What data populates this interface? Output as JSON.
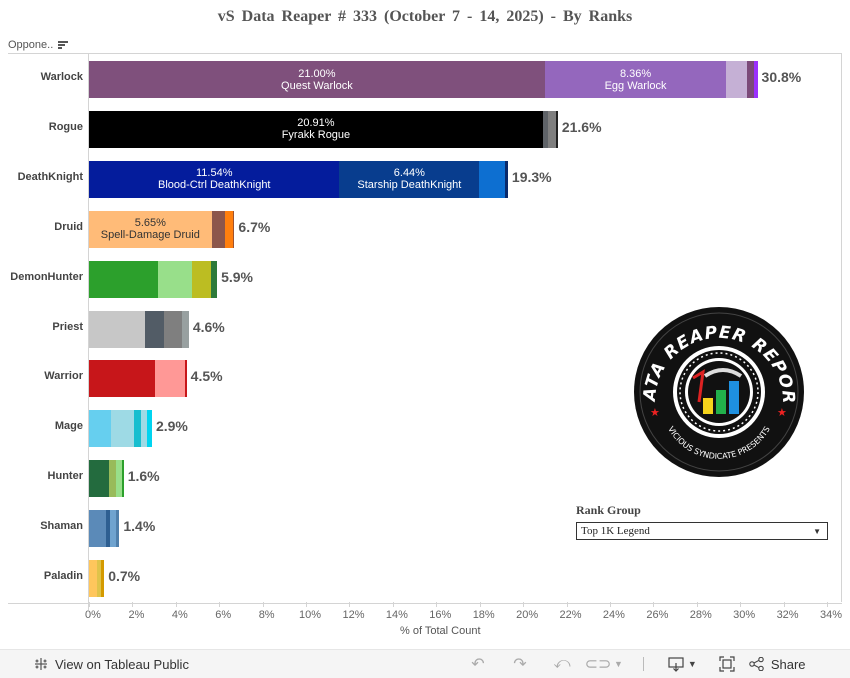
{
  "title": "vS Data Reaper #  333 (October 7 - 14, 2025) - By Ranks",
  "header": {
    "column_label": "Oppone..",
    "sort_icon": "sort-descending-icon"
  },
  "chart_data": {
    "type": "bar",
    "orientation": "horizontal",
    "stacked": true,
    "title": "vS Data Reaper #  333 (October 7 - 14, 2025) - By Ranks",
    "xlabel": "% of Total Count",
    "ylabel": "Oppone..",
    "xlim": [
      0,
      34
    ],
    "x_ticks": [
      "0%",
      "2%",
      "4%",
      "6%",
      "8%",
      "10%",
      "12%",
      "14%",
      "16%",
      "18%",
      "20%",
      "22%",
      "24%",
      "26%",
      "28%",
      "30%",
      "32%",
      "34%"
    ],
    "grid": false,
    "categories": [
      "Warlock",
      "Rogue",
      "DeathKnight",
      "Druid",
      "DemonHunter",
      "Priest",
      "Warrior",
      "Mage",
      "Hunter",
      "Shaman",
      "Paladin"
    ],
    "totals": [
      30.8,
      21.6,
      19.3,
      6.7,
      5.9,
      4.6,
      4.5,
      2.9,
      1.6,
      1.4,
      0.7
    ],
    "total_labels": [
      "30.8%",
      "21.6%",
      "19.3%",
      "6.7%",
      "5.9%",
      "4.6%",
      "4.5%",
      "2.9%",
      "1.6%",
      "1.4%",
      "0.7%"
    ],
    "rows": [
      {
        "class": "Warlock",
        "total_label": "30.8%",
        "segments": [
          {
            "value": 21.0,
            "pct": "21.00%",
            "name": "Quest Warlock",
            "color": "#7f507c"
          },
          {
            "value": 8.36,
            "pct": "8.36%",
            "name": "Egg Warlock",
            "color": "#9467bd"
          },
          {
            "value": 0.95,
            "color": "#c5b0d5"
          },
          {
            "value": 0.35,
            "color": "#7b4a79"
          },
          {
            "value": 0.14,
            "color": "#9b30ff"
          }
        ]
      },
      {
        "class": "Rogue",
        "total_label": "21.6%",
        "segments": [
          {
            "value": 20.91,
            "pct": "20.91%",
            "name": "Fyrakk Rogue",
            "color": "#000000"
          },
          {
            "value": 0.25,
            "color": "#5f6368"
          },
          {
            "value": 0.37,
            "color": "#7f7f7f"
          },
          {
            "value": 0.07,
            "color": "#222222"
          }
        ]
      },
      {
        "class": "DeathKnight",
        "total_label": "19.3%",
        "segments": [
          {
            "value": 11.54,
            "pct": "11.54%",
            "name": "Blood-Ctrl DeathKnight",
            "color": "#041c9c"
          },
          {
            "value": 6.44,
            "pct": "6.44%",
            "name": "Starship DeathKnight",
            "color": "#083d8e"
          },
          {
            "value": 1.18,
            "color": "#0d6fd1"
          },
          {
            "value": 0.14,
            "color": "#0a2a6b"
          }
        ]
      },
      {
        "class": "Druid",
        "total_label": "6.7%",
        "segments": [
          {
            "value": 5.65,
            "pct": "5.65%",
            "name": "Spell-Damage Druid",
            "color": "#ffbb78",
            "dark_text": true
          },
          {
            "value": 0.6,
            "color": "#8c564b"
          },
          {
            "value": 0.37,
            "color": "#ff7f0e"
          },
          {
            "value": 0.08,
            "color": "#a0522d"
          }
        ]
      },
      {
        "class": "DemonHunter",
        "total_label": "5.9%",
        "segments": [
          {
            "value": 3.18,
            "color": "#2ca02c"
          },
          {
            "value": 1.57,
            "color": "#98df8a"
          },
          {
            "value": 0.87,
            "color": "#bcbd22"
          },
          {
            "value": 0.28,
            "color": "#2d7a3a"
          }
        ]
      },
      {
        "class": "Priest",
        "total_label": "4.6%",
        "segments": [
          {
            "value": 2.59,
            "color": "#c7c7c7"
          },
          {
            "value": 0.87,
            "color": "#525c66"
          },
          {
            "value": 0.83,
            "color": "#7f7f7f"
          },
          {
            "value": 0.31,
            "color": "#98a0a0"
          }
        ]
      },
      {
        "class": "Warrior",
        "total_label": "4.5%",
        "segments": [
          {
            "value": 3.05,
            "color": "#c7161a"
          },
          {
            "value": 1.38,
            "color": "#ff9896"
          },
          {
            "value": 0.07,
            "color": "#c7161a"
          }
        ]
      },
      {
        "class": "Mage",
        "total_label": "2.9%",
        "segments": [
          {
            "value": 1.01,
            "color": "#66cfef"
          },
          {
            "value": 1.06,
            "color": "#9edae5"
          },
          {
            "value": 0.32,
            "color": "#17becf"
          },
          {
            "value": 0.28,
            "color": "#9edae5"
          },
          {
            "value": 0.23,
            "color": "#00d4f0"
          }
        ]
      },
      {
        "class": "Hunter",
        "total_label": "1.6%",
        "segments": [
          {
            "value": 0.92,
            "color": "#236b3e"
          },
          {
            "value": 0.32,
            "color": "#98bb5a"
          },
          {
            "value": 0.28,
            "color": "#98df8a"
          },
          {
            "value": 0.08,
            "color": "#2ca02c"
          }
        ]
      },
      {
        "class": "Shaman",
        "total_label": "1.4%",
        "segments": [
          {
            "value": 0.78,
            "color": "#5b8ab8"
          },
          {
            "value": 0.18,
            "color": "#2e5f91"
          },
          {
            "value": 0.28,
            "color": "#6fa3cf"
          },
          {
            "value": 0.16,
            "color": "#4f7fab"
          }
        ]
      },
      {
        "class": "Paladin",
        "total_label": "0.7%",
        "segments": [
          {
            "value": 0.37,
            "color": "#ffc65c"
          },
          {
            "value": 0.17,
            "color": "#e0c34a"
          },
          {
            "value": 0.16,
            "color": "#d49a00"
          }
        ]
      }
    ]
  },
  "logo": {
    "title": "DATA REAPER REPORT",
    "subtitle": "VICIOUS SYNDICATE PRESENTS"
  },
  "filter": {
    "label": "Rank Group",
    "selected": "Top 1K Legend"
  },
  "footer": {
    "view_on_label": "View on Tableau Public",
    "share_label": "Share",
    "icons": [
      "undo-icon",
      "redo-icon",
      "revert-icon",
      "refresh-icon",
      "download-icon",
      "fullscreen-icon",
      "share-icon"
    ]
  }
}
